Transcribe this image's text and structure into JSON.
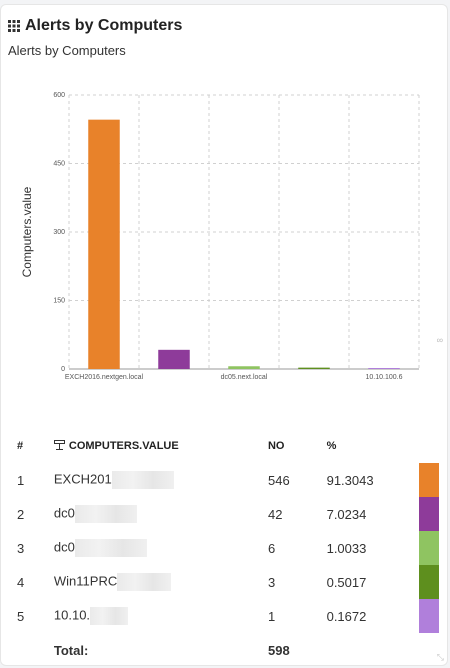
{
  "widget": {
    "title": "Alerts by Computers",
    "subtitle": "Alerts by Computers",
    "header_icon": "grid-icon"
  },
  "chart_data": {
    "type": "bar",
    "ylabel": "Computers.value",
    "xlabel": "",
    "ylim": [
      0,
      600
    ],
    "yticks": [
      0,
      150,
      300,
      450,
      600
    ],
    "categories": [
      "EXCH2016.nextgen.local",
      "dc0",
      "dc05.next.local",
      "Win11PRC",
      "10.10.100.6"
    ],
    "tick_labels": [
      "EXCH2016.nextgen.local",
      "",
      "dc05.next.local",
      "",
      "10.10.100.6"
    ],
    "values": [
      546,
      42,
      6,
      3,
      1
    ],
    "colors": [
      "#e8822a",
      "#8e3b9a",
      "#8fc461",
      "#5e8f1e",
      "#b07fdb"
    ],
    "grid": true
  },
  "table": {
    "headers": {
      "index": "#",
      "name": "COMPUTERS.VALUE",
      "no": "NO",
      "pct": "%"
    },
    "rows": [
      {
        "index": "1",
        "name": "EXCH201",
        "no": "546",
        "pct": "91.3043",
        "color": "#e8822a"
      },
      {
        "index": "2",
        "name": "dc0",
        "no": "42",
        "pct": "7.0234",
        "color": "#8e3b9a"
      },
      {
        "index": "3",
        "name": "dc0",
        "no": "6",
        "pct": "1.0033",
        "color": "#8fc461"
      },
      {
        "index": "4",
        "name": "Win11PRC",
        "no": "3",
        "pct": "0.5017",
        "color": "#5e8f1e"
      },
      {
        "index": "5",
        "name": "10.10.",
        "no": "1",
        "pct": "0.1672",
        "color": "#b07fdb"
      }
    ],
    "total_label": "Total:",
    "total_value": "598"
  }
}
